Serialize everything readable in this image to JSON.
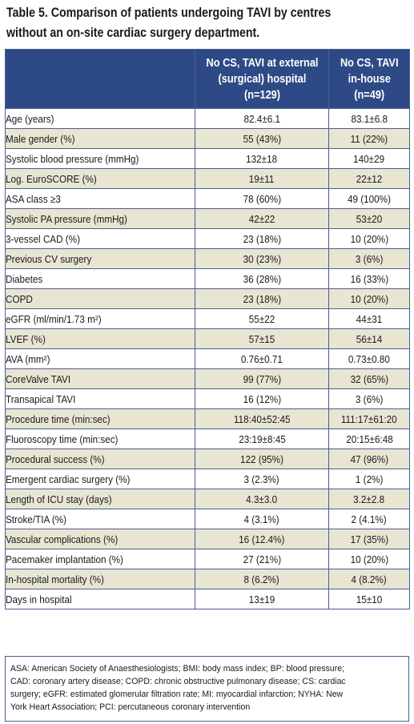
{
  "title": {
    "line1": "Table 5. Comparison of patients undergoing TAVI by centres",
    "line2": "without an on-site cardiac surgery department."
  },
  "header": {
    "col0": "",
    "col1_line1": "No CS, TAVI at external",
    "col1_line2": "(surgical) hospital",
    "col1_line3": "(n=129)",
    "col2_line1": "No CS, TAVI",
    "col2_line2": "in-house",
    "col2_line3": "(n=49)"
  },
  "rows": [
    {
      "label": "Age (years)",
      "a": "82.4±6.1",
      "b": "83.1±6.8"
    },
    {
      "label": "Male gender (%)",
      "a": "55 (43%)",
      "b": "11 (22%)"
    },
    {
      "label": "Systolic blood pressure (mmHg)",
      "a": "132±18",
      "b": "140±29"
    },
    {
      "label": "Log. EuroSCORE (%)",
      "a": "19±11",
      "b": "22±12"
    },
    {
      "label": "ASA class ≥3",
      "a": "78 (60%)",
      "b": "49 (100%)"
    },
    {
      "label": "Systolic PA pressure (mmHg)",
      "a": "42±22",
      "b": "53±20"
    },
    {
      "label": "3-vessel CAD (%)",
      "a": "23 (18%)",
      "b": "10 (20%)"
    },
    {
      "label": "Previous CV surgery",
      "a": "30 (23%)",
      "b": "3 (6%)"
    },
    {
      "label": "Diabetes",
      "a": "36 (28%)",
      "b": "16 (33%)"
    },
    {
      "label": "COPD",
      "a": "23 (18%)",
      "b": "10 (20%)"
    },
    {
      "label": "eGFR (ml/min/1.73 m²)",
      "a": "55±22",
      "b": "44±31"
    },
    {
      "label": "LVEF (%)",
      "a": "57±15",
      "b": "56±14"
    },
    {
      "label": "AVA (mm²)",
      "a": "0.76±0.71",
      "b": "0.73±0.80"
    },
    {
      "label": "CoreValve TAVI",
      "a": "99 (77%)",
      "b": "32 (65%)"
    },
    {
      "label": "Transapical TAVI",
      "a": "16 (12%)",
      "b": "3 (6%)"
    },
    {
      "label": "Procedure time (min:sec)",
      "a": "118:40±52:45",
      "b": "111:17±61:20"
    },
    {
      "label": "Fluoroscopy time (min:sec)",
      "a": "23:19±8:45",
      "b": "20:15±6:48"
    },
    {
      "label": "Procedural success (%)",
      "a": "122 (95%)",
      "b": "47 (96%)"
    },
    {
      "label": "Emergent cardiac surgery (%)",
      "a": "3 (2.3%)",
      "b": "1 (2%)"
    },
    {
      "label": "Length of ICU stay (days)",
      "a": "4.3±3.0",
      "b": "3.2±2.8"
    },
    {
      "label": "Stroke/TIA (%)",
      "a": "4 (3.1%)",
      "b": "2 (4.1%)"
    },
    {
      "label": "Vascular complications (%)",
      "a": "16 (12.4%)",
      "b": "17 (35%)"
    },
    {
      "label": "Pacemaker implantation (%)",
      "a": "27 (21%)",
      "b": "10 (20%)"
    },
    {
      "label": "In-hospital mortality (%)",
      "a": "8 (6.2%)",
      "b": "4 (8.2%)"
    },
    {
      "label": "Days in hospital",
      "a": "13±19",
      "b": "15±10"
    }
  ],
  "footnote": {
    "line1": "ASA: American Society of Anaesthesiologists; BMI: body mass index; BP: blood pressure;",
    "line2": "CAD: coronary artery disease; COPD: chronic obstructive pulmonary disease; CS: cardiac",
    "line3": "surgery; eGFR: estimated glomerular filtration rate; MI: myocardial infarction; NYHA: New",
    "line4": "York Heart Association; PCI: percutaneous coronary intervention"
  },
  "colors": {
    "header_bg": "#2e4a86",
    "row_alt_bg": "#e8e5d3",
    "border": "#4a5f8c"
  }
}
